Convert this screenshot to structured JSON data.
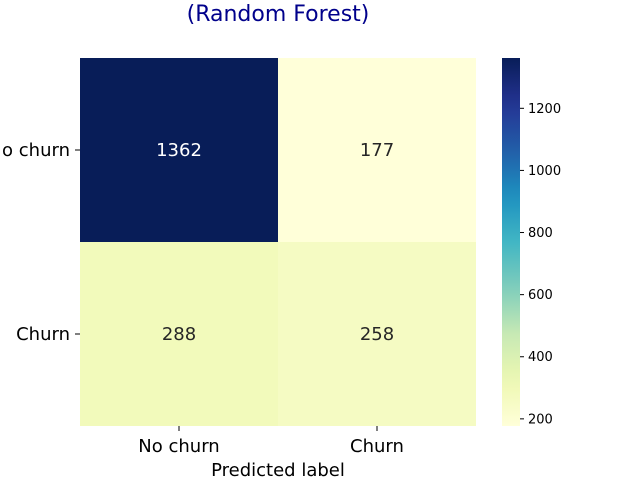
{
  "chart_data": {
    "type": "heatmap",
    "title": "(Random Forest)",
    "title_color": "#00008b",
    "xlabel": "Predicted label",
    "ylabel": "",
    "x_categories": [
      "No churn",
      "Churn"
    ],
    "y_categories": [
      "No churn",
      "Churn"
    ],
    "y_tick_labels_visible": [
      "o churn",
      "Churn"
    ],
    "values": [
      [
        1362,
        177
      ],
      [
        288,
        258
      ]
    ],
    "colormap": "YlGnBu",
    "colorbar": {
      "ticks": [
        200,
        400,
        600,
        800,
        1000,
        1200
      ],
      "vmin": 177,
      "vmax": 1362
    },
    "annotation_colors": {
      "dark": "#ffffff",
      "light": "#262626"
    }
  }
}
